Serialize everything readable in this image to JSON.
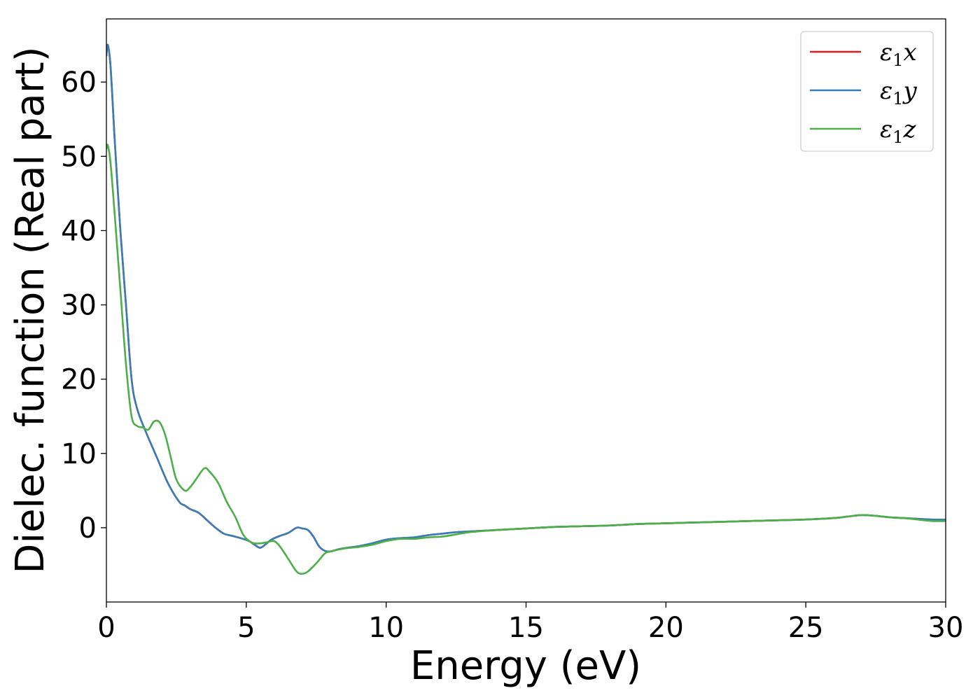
{
  "chart_data": {
    "type": "line",
    "title": "",
    "xlabel": "Energy (eV)",
    "ylabel": "Dielec. function (Real part)",
    "xlim": [
      0,
      30
    ],
    "ylim": [
      -10,
      68.5
    ],
    "x_ticks": [
      0,
      5,
      10,
      15,
      20,
      25,
      30
    ],
    "y_ticks": [
      0,
      10,
      20,
      30,
      40,
      50,
      60
    ],
    "grid": false,
    "legend_position": "top-right",
    "series": [
      {
        "name": "ε₁x",
        "legend_base": "ε",
        "legend_sub": "1",
        "legend_suffix": "x",
        "color": "#e41a1c",
        "x": [
          0,
          0.05,
          0.15,
          0.3,
          0.5,
          0.7,
          0.9,
          1.1,
          1.4,
          1.8,
          2.2,
          2.6,
          2.8,
          3.0,
          3.3,
          3.6,
          3.9,
          4.2,
          4.5,
          4.8,
          5.1,
          5.3,
          5.5,
          5.7,
          5.9,
          6.2,
          6.5,
          6.8,
          7.0,
          7.2,
          7.4,
          7.6,
          7.8,
          8.0,
          8.3,
          8.6,
          9.0,
          9.5,
          10.0,
          10.5,
          11.0,
          11.5,
          12.0,
          12.5,
          13.0,
          14.0,
          15.0,
          16.0,
          17.0,
          18.0,
          19.0,
          20.0,
          21.0,
          22.0,
          23.0,
          24.0,
          25.0,
          26.0,
          26.5,
          27.0,
          27.5,
          28.0,
          28.5,
          29.0,
          29.5,
          30.0
        ],
        "y": [
          63.5,
          65,
          62,
          52,
          40,
          30,
          20,
          16,
          13,
          9.5,
          6,
          3.5,
          3,
          2.5,
          2,
          1,
          0,
          -0.8,
          -1.1,
          -1.4,
          -1.8,
          -2.3,
          -2.7,
          -2.2,
          -1.6,
          -1.1,
          -0.7,
          0,
          -0.1,
          -0.3,
          -1.2,
          -2.5,
          -3.1,
          -3.2,
          -2.9,
          -2.7,
          -2.5,
          -2.1,
          -1.6,
          -1.4,
          -1.3,
          -1.0,
          -0.8,
          -0.6,
          -0.5,
          -0.3,
          -0.1,
          0.1,
          0.2,
          0.3,
          0.5,
          0.6,
          0.7,
          0.8,
          0.9,
          1.0,
          1.1,
          1.3,
          1.5,
          1.7,
          1.6,
          1.4,
          1.3,
          1.2,
          1.1,
          1.0
        ]
      },
      {
        "name": "ε₁y",
        "legend_base": "ε",
        "legend_sub": "1",
        "legend_suffix": "y",
        "color": "#377eb8",
        "x": [
          0,
          0.05,
          0.15,
          0.3,
          0.5,
          0.7,
          0.9,
          1.1,
          1.4,
          1.8,
          2.2,
          2.6,
          2.8,
          3.0,
          3.3,
          3.6,
          3.9,
          4.2,
          4.5,
          4.8,
          5.1,
          5.3,
          5.5,
          5.7,
          5.9,
          6.2,
          6.5,
          6.8,
          7.0,
          7.2,
          7.4,
          7.6,
          7.8,
          8.0,
          8.3,
          8.6,
          9.0,
          9.5,
          10.0,
          10.5,
          11.0,
          11.5,
          12.0,
          12.5,
          13.0,
          14.0,
          15.0,
          16.0,
          17.0,
          18.0,
          19.0,
          20.0,
          21.0,
          22.0,
          23.0,
          24.0,
          25.0,
          26.0,
          26.5,
          27.0,
          27.5,
          28.0,
          28.5,
          29.0,
          29.5,
          30.0
        ],
        "y": [
          63.5,
          65,
          62,
          52,
          40,
          30,
          20,
          16,
          13,
          9.5,
          6,
          3.5,
          3,
          2.5,
          2,
          1,
          0,
          -0.8,
          -1.1,
          -1.4,
          -1.8,
          -2.3,
          -2.7,
          -2.2,
          -1.6,
          -1.1,
          -0.7,
          0,
          -0.1,
          -0.3,
          -1.2,
          -2.5,
          -3.1,
          -3.2,
          -2.9,
          -2.7,
          -2.5,
          -2.1,
          -1.6,
          -1.4,
          -1.3,
          -1.0,
          -0.8,
          -0.6,
          -0.5,
          -0.3,
          -0.1,
          0.1,
          0.2,
          0.3,
          0.5,
          0.6,
          0.7,
          0.8,
          0.9,
          1.0,
          1.1,
          1.3,
          1.5,
          1.7,
          1.6,
          1.4,
          1.3,
          1.2,
          1.1,
          1.1
        ]
      },
      {
        "name": "ε₁z",
        "legend_base": "ε",
        "legend_sub": "1",
        "legend_suffix": "z",
        "color": "#4daf4a",
        "x": [
          0,
          0.05,
          0.15,
          0.3,
          0.5,
          0.7,
          0.9,
          1.1,
          1.3,
          1.5,
          1.7,
          1.9,
          2.1,
          2.3,
          2.5,
          2.8,
          3.0,
          3.2,
          3.5,
          3.7,
          4.0,
          4.3,
          4.6,
          4.9,
          5.2,
          5.5,
          5.8,
          6.0,
          6.2,
          6.5,
          6.8,
          7.0,
          7.2,
          7.5,
          7.8,
          8.0,
          8.5,
          9.0,
          9.5,
          10.0,
          10.5,
          11.0,
          11.5,
          12.0,
          12.5,
          13.0,
          14.0,
          15.0,
          16.0,
          17.0,
          18.0,
          19.0,
          20.0,
          21.0,
          22.0,
          23.0,
          24.0,
          25.0,
          26.0,
          26.5,
          27.0,
          27.5,
          28.0,
          28.5,
          29.0,
          29.5,
          30.0
        ],
        "y": [
          51,
          51.5,
          49,
          42,
          32,
          22,
          15,
          13.7,
          13.5,
          13.2,
          14.3,
          14.2,
          12.5,
          9.5,
          6.5,
          5,
          5.5,
          6.5,
          8,
          7.5,
          6,
          3.5,
          1.5,
          -1,
          -2,
          -2.1,
          -1.9,
          -1.8,
          -2.5,
          -4.2,
          -5.9,
          -6.2,
          -5.9,
          -4.8,
          -3.5,
          -3.2,
          -2.8,
          -2.6,
          -2.3,
          -1.8,
          -1.5,
          -1.5,
          -1.3,
          -1.2,
          -0.9,
          -0.6,
          -0.3,
          -0.1,
          0.1,
          0.2,
          0.3,
          0.5,
          0.6,
          0.7,
          0.8,
          0.9,
          1.0,
          1.1,
          1.3,
          1.5,
          1.7,
          1.6,
          1.4,
          1.3,
          1.1,
          0.9,
          0.9
        ]
      }
    ]
  }
}
